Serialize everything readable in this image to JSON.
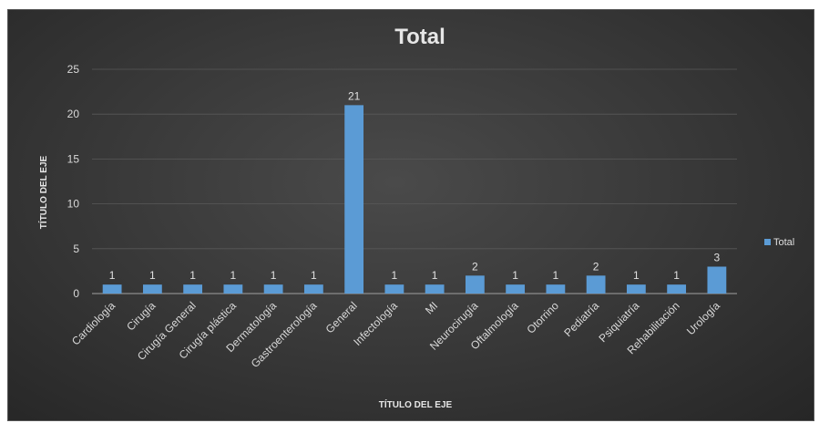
{
  "chart_data": {
    "type": "bar",
    "title": "Total",
    "xlabel": "TÍTULO DEL EJE",
    "ylabel": "TÍTULO DEL EJE",
    "categories": [
      "Cardiología",
      "Cirugía",
      "Cirugía General",
      "Cirugía plástica",
      "Dermatología",
      "Gastroenterología",
      "General",
      "Infectología",
      "MI",
      "Neurocirugía",
      "Oftalmología",
      "Otorrino",
      "Pediatría",
      "Psiquiatría",
      "Rehabilitación",
      "Urología"
    ],
    "series": [
      {
        "name": "Total",
        "values": [
          1,
          1,
          1,
          1,
          1,
          1,
          21,
          1,
          1,
          2,
          1,
          1,
          2,
          1,
          1,
          3
        ]
      }
    ],
    "ylim": [
      0,
      25
    ],
    "yticks": [
      0,
      5,
      10,
      15,
      20,
      25
    ],
    "data_labels": true,
    "grid": true,
    "legend": "right",
    "colors": {
      "bar": "#5b9bd5",
      "grid": "#595959",
      "text": "#d9d9d9"
    }
  }
}
